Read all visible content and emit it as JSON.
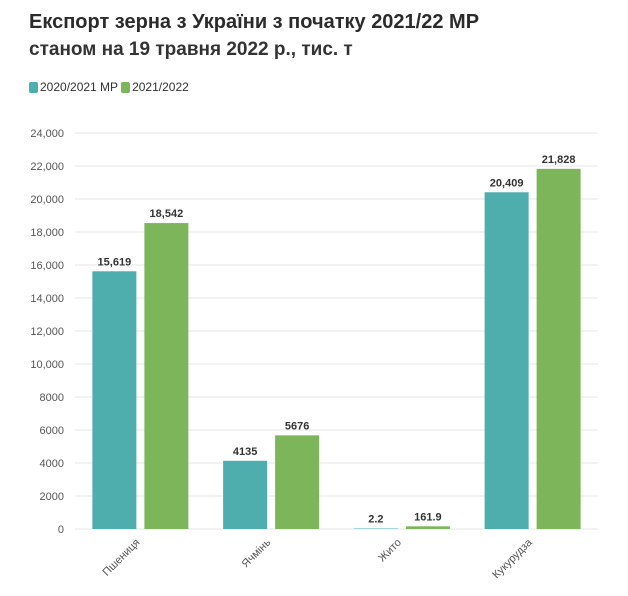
{
  "chart_data": {
    "type": "bar",
    "title": "Експорт зерна з України з початку 2021/22 МР",
    "subtitle": "станом на 19 травня 2022 р., тис. т",
    "categories": [
      "Пшениця",
      "Ячмінь",
      "Жито",
      "Кукурудза"
    ],
    "series": [
      {
        "name": "2020/2021 МР",
        "color": "#4eaeae",
        "values": [
          15619,
          4135,
          2.2,
          20409
        ],
        "labels": [
          "15,619",
          "4135",
          "2.2",
          "20,409"
        ]
      },
      {
        "name": "2021/2022",
        "color": "#7db65a",
        "values": [
          18542,
          5676,
          161.9,
          21828
        ],
        "labels": [
          "18,542",
          "5676",
          "161.9",
          "21,828"
        ]
      }
    ],
    "yticks": [
      0,
      2000,
      4000,
      6000,
      8000,
      10000,
      12000,
      14000,
      16000,
      18000,
      20000,
      22000,
      24000
    ],
    "ytick_labels": [
      "0",
      "2000",
      "4000",
      "6000",
      "8000",
      "10,000",
      "12,000",
      "14,000",
      "16,000",
      "18,000",
      "20,000",
      "22,000",
      "24,000"
    ],
    "ylim": [
      0,
      24000
    ],
    "grid": true,
    "legend_position": "top-left"
  }
}
